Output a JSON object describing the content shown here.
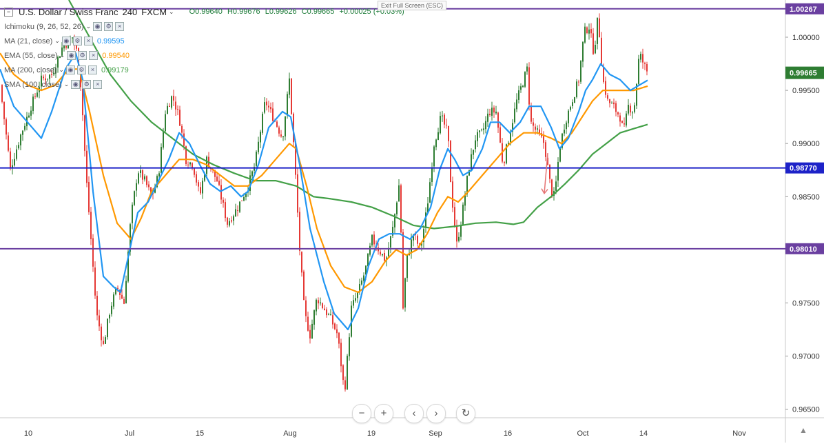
{
  "header": {
    "symbol": "U.S. Dollar / Swiss Franc",
    "timeframe": "240",
    "source": "FXCM",
    "ohlc": {
      "open": "O0.99640",
      "high": "H0.99676",
      "low": "L0.99626",
      "close": "C0.99665",
      "change": "+0.00025 (+0.03%)"
    },
    "exit_fullscreen": "Exit Full Screen (ESC)"
  },
  "indicators": [
    {
      "label": "Ichimoku (9, 26, 52, 26)",
      "value": "",
      "color": "#9a9a9a"
    },
    {
      "label": "MA (21, close)",
      "value": "0.99595",
      "color": "#2196f3"
    },
    {
      "label": "EMA (55, close)",
      "value": "0.99540",
      "color": "#ff9800"
    },
    {
      "label": "MA (200, close)",
      "value": "0.99179",
      "color": "#43a047"
    },
    {
      "label": "SMA (100, close)",
      "value": "",
      "color": "#9a9a9a"
    }
  ],
  "colors": {
    "up_candle": "#2e7d32",
    "down_candle": "#e53935",
    "ma21": "#2196f3",
    "ema55": "#ff9800",
    "ma200": "#43a047",
    "purple_line": "#6a3fa0",
    "blue_line": "#1d22c8"
  },
  "icons": {
    "zoom_out": "minus-icon",
    "zoom_in": "plus-icon",
    "scroll_left": "chevron-left-icon",
    "scroll_right": "chevron-right-icon",
    "reset": "reset-icon",
    "settings": "triangle-icon"
  },
  "nav": {
    "zoom_out": "−",
    "zoom_in": "+",
    "left": "‹",
    "right": "›",
    "reset": "↻",
    "settings": "▲"
  },
  "chart_data": {
    "type": "candlestick",
    "y_range": [
      0.9642,
      1.0035
    ],
    "y_ticks": [
      "1.00000",
      "0.99500",
      "0.99000",
      "0.98500",
      "0.98000",
      "0.97500",
      "0.97000",
      "0.96500"
    ],
    "x_ticks": [
      "10",
      "Jul",
      "15",
      "Aug",
      "19",
      "Sep",
      "16",
      "Oct",
      "14",
      "Nov"
    ],
    "horizontal_levels": [
      {
        "price": 1.00267,
        "label": "1.00267",
        "color": "#6a3fa0"
      },
      {
        "price": 0.9877,
        "label": "0.98770",
        "color": "#1d22c8"
      },
      {
        "price": 0.9801,
        "label": "0.98010",
        "color": "#6a3fa0"
      }
    ],
    "last_price": {
      "price": 0.99665,
      "label": "0.99665",
      "color": "#2e7d32"
    },
    "price_path": [
      [
        0,
        0.9955
      ],
      [
        15,
        0.9876
      ],
      [
        30,
        0.9908
      ],
      [
        45,
        0.9935
      ],
      [
        60,
        0.996
      ],
      [
        75,
        0.9965
      ],
      [
        90,
        0.999
      ],
      [
        105,
        1.0
      ],
      [
        112,
        0.9985
      ],
      [
        118,
        0.995
      ],
      [
        125,
        0.987
      ],
      [
        132,
        0.981
      ],
      [
        140,
        0.974
      ],
      [
        150,
        0.971
      ],
      [
        160,
        0.9745
      ],
      [
        170,
        0.9765
      ],
      [
        180,
        0.975
      ],
      [
        190,
        0.983
      ],
      [
        200,
        0.9875
      ],
      [
        210,
        0.9865
      ],
      [
        220,
        0.985
      ],
      [
        230,
        0.987
      ],
      [
        240,
        0.993
      ],
      [
        250,
        0.9945
      ],
      [
        260,
        0.9925
      ],
      [
        270,
        0.9885
      ],
      [
        280,
        0.988
      ],
      [
        290,
        0.985
      ],
      [
        300,
        0.9885
      ],
      [
        315,
        0.9865
      ],
      [
        330,
        0.9825
      ],
      [
        345,
        0.984
      ],
      [
        360,
        0.986
      ],
      [
        370,
        0.988
      ],
      [
        385,
        0.994
      ],
      [
        400,
        0.992
      ],
      [
        410,
        0.9905
      ],
      [
        420,
        0.996
      ],
      [
        428,
        0.988
      ],
      [
        435,
        0.98
      ],
      [
        442,
        0.974
      ],
      [
        450,
        0.972
      ],
      [
        460,
        0.9755
      ],
      [
        470,
        0.9745
      ],
      [
        480,
        0.9735
      ],
      [
        490,
        0.972
      ],
      [
        500,
        0.9665
      ],
      [
        510,
        0.9745
      ],
      [
        520,
        0.976
      ],
      [
        530,
        0.978
      ],
      [
        540,
        0.981
      ],
      [
        550,
        0.98
      ],
      [
        560,
        0.979
      ],
      [
        570,
        0.982
      ],
      [
        580,
        0.9865
      ],
      [
        585,
        0.9745
      ],
      [
        590,
        0.979
      ],
      [
        600,
        0.9815
      ],
      [
        610,
        0.98
      ],
      [
        620,
        0.984
      ],
      [
        630,
        0.99
      ],
      [
        640,
        0.9925
      ],
      [
        650,
        0.991
      ],
      [
        655,
        0.9855
      ],
      [
        663,
        0.9805
      ],
      [
        670,
        0.983
      ],
      [
        680,
        0.9875
      ],
      [
        690,
        0.9905
      ],
      [
        700,
        0.991
      ],
      [
        710,
        0.993
      ],
      [
        720,
        0.993
      ],
      [
        730,
        0.988
      ],
      [
        740,
        0.991
      ],
      [
        750,
        0.994
      ],
      [
        760,
        0.996
      ],
      [
        765,
        0.997
      ],
      [
        770,
        0.992
      ],
      [
        780,
        0.991
      ],
      [
        790,
        0.99
      ],
      [
        800,
        0.9855
      ],
      [
        805,
        0.985
      ],
      [
        812,
        0.9895
      ],
      [
        820,
        0.992
      ],
      [
        830,
        0.994
      ],
      [
        840,
        0.996
      ],
      [
        848,
        1.0005
      ],
      [
        855,
        1.001
      ],
      [
        862,
        0.9985
      ],
      [
        868,
        1.002
      ],
      [
        875,
        0.996
      ],
      [
        882,
        0.994
      ],
      [
        890,
        0.9935
      ],
      [
        900,
        0.9925
      ],
      [
        905,
        0.991
      ],
      [
        912,
        0.9935
      ],
      [
        920,
        0.993
      ],
      [
        928,
        0.9985
      ],
      [
        934,
        0.9975
      ],
      [
        940,
        0.99665
      ]
    ],
    "ma21_path": [
      [
        0,
        0.997
      ],
      [
        20,
        0.9935
      ],
      [
        40,
        0.992
      ],
      [
        60,
        0.9905
      ],
      [
        75,
        0.993
      ],
      [
        95,
        0.997
      ],
      [
        110,
        0.9985
      ],
      [
        120,
        0.996
      ],
      [
        135,
        0.9855
      ],
      [
        150,
        0.9775
      ],
      [
        165,
        0.9765
      ],
      [
        175,
        0.976
      ],
      [
        185,
        0.979
      ],
      [
        200,
        0.9835
      ],
      [
        215,
        0.9845
      ],
      [
        230,
        0.9865
      ],
      [
        245,
        0.9885
      ],
      [
        260,
        0.991
      ],
      [
        275,
        0.99
      ],
      [
        290,
        0.988
      ],
      [
        305,
        0.9862
      ],
      [
        320,
        0.9855
      ],
      [
        335,
        0.986
      ],
      [
        350,
        0.985
      ],
      [
        360,
        0.9855
      ],
      [
        375,
        0.988
      ],
      [
        390,
        0.9915
      ],
      [
        410,
        0.993
      ],
      [
        422,
        0.9925
      ],
      [
        435,
        0.988
      ],
      [
        450,
        0.982
      ],
      [
        470,
        0.977
      ],
      [
        485,
        0.974
      ],
      [
        505,
        0.9725
      ],
      [
        520,
        0.9745
      ],
      [
        535,
        0.9785
      ],
      [
        550,
        0.981
      ],
      [
        565,
        0.9815
      ],
      [
        580,
        0.9815
      ],
      [
        595,
        0.981
      ],
      [
        610,
        0.982
      ],
      [
        625,
        0.984
      ],
      [
        638,
        0.9875
      ],
      [
        650,
        0.9895
      ],
      [
        660,
        0.9885
      ],
      [
        672,
        0.987
      ],
      [
        685,
        0.9875
      ],
      [
        700,
        0.9895
      ],
      [
        712,
        0.992
      ],
      [
        725,
        0.992
      ],
      [
        740,
        0.991
      ],
      [
        755,
        0.992
      ],
      [
        768,
        0.9935
      ],
      [
        785,
        0.9935
      ],
      [
        800,
        0.9915
      ],
      [
        812,
        0.9895
      ],
      [
        825,
        0.9905
      ],
      [
        840,
        0.993
      ],
      [
        850,
        0.995
      ],
      [
        860,
        0.996
      ],
      [
        872,
        0.9975
      ],
      [
        885,
        0.9965
      ],
      [
        900,
        0.996
      ],
      [
        915,
        0.995
      ],
      [
        928,
        0.9955
      ],
      [
        940,
        0.99595
      ]
    ],
    "ema55_path": [
      [
        0,
        0.9985
      ],
      [
        20,
        0.9965
      ],
      [
        40,
        0.9955
      ],
      [
        60,
        0.995
      ],
      [
        80,
        0.9955
      ],
      [
        100,
        0.997
      ],
      [
        115,
        0.997
      ],
      [
        130,
        0.993
      ],
      [
        150,
        0.987
      ],
      [
        170,
        0.9825
      ],
      [
        190,
        0.981
      ],
      [
        205,
        0.983
      ],
      [
        220,
        0.9855
      ],
      [
        240,
        0.987
      ],
      [
        260,
        0.9885
      ],
      [
        280,
        0.9885
      ],
      [
        300,
        0.988
      ],
      [
        320,
        0.987
      ],
      [
        340,
        0.986
      ],
      [
        360,
        0.986
      ],
      [
        380,
        0.987
      ],
      [
        400,
        0.9885
      ],
      [
        420,
        0.99
      ],
      [
        430,
        0.9895
      ],
      [
        445,
        0.986
      ],
      [
        460,
        0.982
      ],
      [
        480,
        0.9785
      ],
      [
        500,
        0.9765
      ],
      [
        520,
        0.976
      ],
      [
        540,
        0.977
      ],
      [
        560,
        0.979
      ],
      [
        575,
        0.98
      ],
      [
        590,
        0.9795
      ],
      [
        605,
        0.98
      ],
      [
        620,
        0.9815
      ],
      [
        635,
        0.9835
      ],
      [
        650,
        0.985
      ],
      [
        665,
        0.9845
      ],
      [
        680,
        0.9855
      ],
      [
        700,
        0.987
      ],
      [
        720,
        0.9885
      ],
      [
        740,
        0.99
      ],
      [
        760,
        0.991
      ],
      [
        780,
        0.991
      ],
      [
        800,
        0.9905
      ],
      [
        815,
        0.99
      ],
      [
        830,
        0.991
      ],
      [
        845,
        0.9925
      ],
      [
        860,
        0.994
      ],
      [
        875,
        0.995
      ],
      [
        890,
        0.995
      ],
      [
        905,
        0.995
      ],
      [
        920,
        0.995
      ],
      [
        940,
        0.9954
      ]
    ],
    "ma200_path": [
      [
        100,
        1.0035
      ],
      [
        130,
        1.0
      ],
      [
        160,
        0.9965
      ],
      [
        190,
        0.994
      ],
      [
        220,
        0.992
      ],
      [
        250,
        0.9905
      ],
      [
        280,
        0.989
      ],
      [
        310,
        0.988
      ],
      [
        340,
        0.9872
      ],
      [
        370,
        0.9865
      ],
      [
        400,
        0.9865
      ],
      [
        430,
        0.986
      ],
      [
        455,
        0.985
      ],
      [
        480,
        0.9848
      ],
      [
        510,
        0.9845
      ],
      [
        540,
        0.984
      ],
      [
        570,
        0.9832
      ],
      [
        600,
        0.9823
      ],
      [
        630,
        0.982
      ],
      [
        660,
        0.9822
      ],
      [
        690,
        0.9825
      ],
      [
        720,
        0.9826
      ],
      [
        745,
        0.9824
      ],
      [
        760,
        0.9826
      ],
      [
        780,
        0.984
      ],
      [
        800,
        0.985
      ],
      [
        820,
        0.9862
      ],
      [
        840,
        0.9875
      ],
      [
        860,
        0.989
      ],
      [
        880,
        0.99
      ],
      [
        900,
        0.991
      ],
      [
        920,
        0.9914
      ],
      [
        940,
        0.99179
      ]
    ],
    "arrow": {
      "from": [
        795,
        0.9891
      ],
      "to": [
        790,
        0.9853
      ],
      "color": "#e57373"
    }
  }
}
